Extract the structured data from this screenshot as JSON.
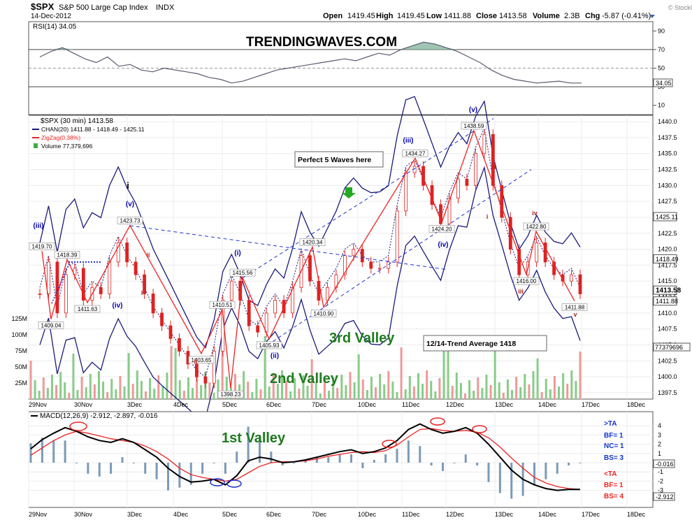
{
  "header": {
    "symbol": "$SPX",
    "name": "S&P 500 Large Cap Index",
    "exchange": "INDX",
    "date": "14-Dec-2012",
    "open_label": "Open",
    "open": "1419.45",
    "high_label": "High",
    "high": "1419.45",
    "low_label": "Low",
    "low": "1411.88",
    "close_label": "Close",
    "close": "1413.58",
    "volume_label": "Volume",
    "volume": "2.3B",
    "chg_label": "Chg",
    "chg": "-5.87 (-0.41%)",
    "watermark": "© StockCharts.com"
  },
  "annotations": {
    "site_title": "TRENDINGWAVES.COM",
    "perfect_waves": "Perfect 5 Waves here",
    "trend_average": "12/14-Trend Average 1418",
    "valley_1": "1st Valley",
    "valley_2": "2nd Valley",
    "valley_3": "3rd Valley"
  },
  "colors": {
    "price_line": "#dd2222",
    "channel": "#1a1a7a",
    "zigzag": "#ee2222",
    "wave_label": "#0000aa",
    "valley_text": "#1e7b1e",
    "rsi_line": "#555566",
    "volume_up": "#88cc88",
    "volume_down": "#ee9999",
    "macd_line": "#000000",
    "signal_line": "#ee2222",
    "histogram": "#7a9ab8",
    "arrow": "#229922"
  },
  "chart_data": [
    {
      "type": "line",
      "panel": "RSI",
      "title": "RSI(14) 34.05",
      "y_ticks": [
        10,
        30,
        50,
        70,
        90
      ],
      "levels": [
        30,
        50,
        70
      ],
      "last_value": "34.05",
      "values": [
        62,
        68,
        72,
        66,
        60,
        56,
        62,
        52,
        54,
        48,
        46,
        50,
        48,
        46,
        44,
        40,
        38,
        34,
        36,
        40,
        44,
        48,
        50,
        52,
        54,
        56,
        58,
        60,
        58,
        62,
        66,
        64,
        70,
        74,
        78,
        76,
        72,
        68,
        62,
        56,
        48,
        42,
        38,
        36,
        34,
        35,
        36,
        34,
        34
      ]
    },
    {
      "type": "candlestick",
      "panel": "price",
      "title": "$SPX (30 min) 1413.58",
      "legend": [
        "CHAN(20) 1411.88 - 1418.49 - 1425.11",
        "ZigZag(0.38%)",
        "Volume 77,379,696"
      ],
      "x_ticks": [
        "29Nov",
        "30Nov",
        "3Dec",
        "4Dec",
        "5Dec",
        "6Dec",
        "7Dec",
        "10Dec",
        "11Dec",
        "12Dec",
        "13Dec",
        "14Dec",
        "17Dec",
        "18Dec"
      ],
      "y_ticks": [
        1397.5,
        1400,
        1402.5,
        1405,
        1407.5,
        1410,
        1412.5,
        1415,
        1417.5,
        1420,
        1422.5,
        1425,
        1427.5,
        1430,
        1432.5,
        1435,
        1437.5,
        1440
      ],
      "ylim": [
        1396.5,
        1441
      ],
      "right_labels": [
        "1425.11",
        "1418.49",
        "1413.58",
        "1411.88"
      ],
      "close": [
        1413,
        1418,
        1410,
        1416,
        1417,
        1412,
        1414,
        1413,
        1418,
        1421,
        1418,
        1416,
        1413,
        1410,
        1408,
        1406,
        1404,
        1402,
        1400,
        1399,
        1404,
        1412,
        1415,
        1412,
        1408,
        1407,
        1410,
        1412,
        1410,
        1414,
        1419,
        1415,
        1412,
        1414,
        1416,
        1419,
        1420,
        1418,
        1417,
        1417,
        1418,
        1426,
        1432,
        1433,
        1430,
        1427,
        1424,
        1428,
        1431,
        1430,
        1435,
        1438,
        1430,
        1425,
        1420,
        1416,
        1418,
        1421,
        1418,
        1416,
        1415,
        1416,
        1413
      ],
      "zigzag_pivots": [
        {
          "label": "1419.70",
          "value": 1419.7
        },
        {
          "label": "1409.04",
          "value": 1409.04
        },
        {
          "label": "1418.39",
          "value": 1418.39
        },
        {
          "label": "1411.63",
          "value": 1411.63
        },
        {
          "label": "1423.73",
          "value": 1423.73
        },
        {
          "label": "1403.65",
          "value": 1403.65
        },
        {
          "label": "1410.51",
          "value": 1410.51
        },
        {
          "label": "1398.23",
          "value": 1398.23
        },
        {
          "label": "1415.56",
          "value": 1415.56
        },
        {
          "label": "1405.93",
          "value": 1405.93
        },
        {
          "label": "1420.34",
          "value": 1420.34
        },
        {
          "label": "1410.90",
          "value": 1410.9
        },
        {
          "label": "1434.27",
          "value": 1434.27
        },
        {
          "label": "1424.20",
          "value": 1424.2
        },
        {
          "label": "1438.59",
          "value": 1438.59
        },
        {
          "label": "1416.00",
          "value": 1416.0
        },
        {
          "label": "1422.80",
          "value": 1422.8
        },
        {
          "label": "1411.88",
          "value": 1411.88
        }
      ],
      "wave_labels": [
        "(iii)",
        "(iv)",
        "(v)",
        "i",
        "ii",
        "i",
        "ii",
        "(i)",
        "(ii)",
        "(iii)",
        "(iv)",
        "(v)",
        "ii",
        "i",
        "iii",
        "iv",
        "v"
      ],
      "volume_ticks": [
        "125M",
        "100M",
        "75M",
        "50M",
        "25M"
      ],
      "volume_last": "77379696"
    },
    {
      "type": "line",
      "panel": "MACD",
      "title": "MACD(12,26,9) -2.912, -2.897, -0.016",
      "y_ticks": [
        4,
        3,
        2,
        1,
        0,
        -1,
        -2,
        -3
      ],
      "right_labels": [
        "-0.016",
        "-2.912"
      ],
      "signal_notes": [
        ">TA",
        "BF= 1",
        "NC= 1",
        "BS= 3",
        "<TA",
        "BF= 1",
        "BS= 4"
      ],
      "macd": [
        1.5,
        2.5,
        3.2,
        3.8,
        3.4,
        2.8,
        2.4,
        2.2,
        2.6,
        2.2,
        1.4,
        0.6,
        -0.6,
        -1.5,
        -2.1,
        -2.0,
        -1.8,
        -2.4,
        -1.4,
        0.2,
        0.6,
        0.4,
        0.0,
        0.1,
        0.3,
        0.6,
        0.9,
        1.2,
        1.4,
        1.0,
        1.2,
        1.6,
        2.4,
        3.6,
        4.2,
        3.6,
        3.2,
        3.4,
        3.8,
        3.2,
        2.0,
        0.6,
        -0.8,
        -1.8,
        -2.4,
        -2.8,
        -3.0,
        -2.9,
        -2.9
      ],
      "signal": [
        0.8,
        1.6,
        2.4,
        3.0,
        3.4,
        3.2,
        2.9,
        2.6,
        2.4,
        2.2,
        1.8,
        1.2,
        0.4,
        -0.6,
        -1.3,
        -1.6,
        -1.8,
        -2.0,
        -1.8,
        -1.1,
        -0.4,
        0.0,
        0.1,
        0.1,
        0.2,
        0.4,
        0.7,
        0.9,
        1.1,
        1.2,
        1.1,
        1.3,
        1.9,
        2.8,
        3.6,
        3.7,
        3.5,
        3.4,
        3.5,
        3.3,
        2.7,
        1.7,
        0.5,
        -0.6,
        -1.6,
        -2.2,
        -2.6,
        -2.8,
        -2.9
      ]
    }
  ]
}
